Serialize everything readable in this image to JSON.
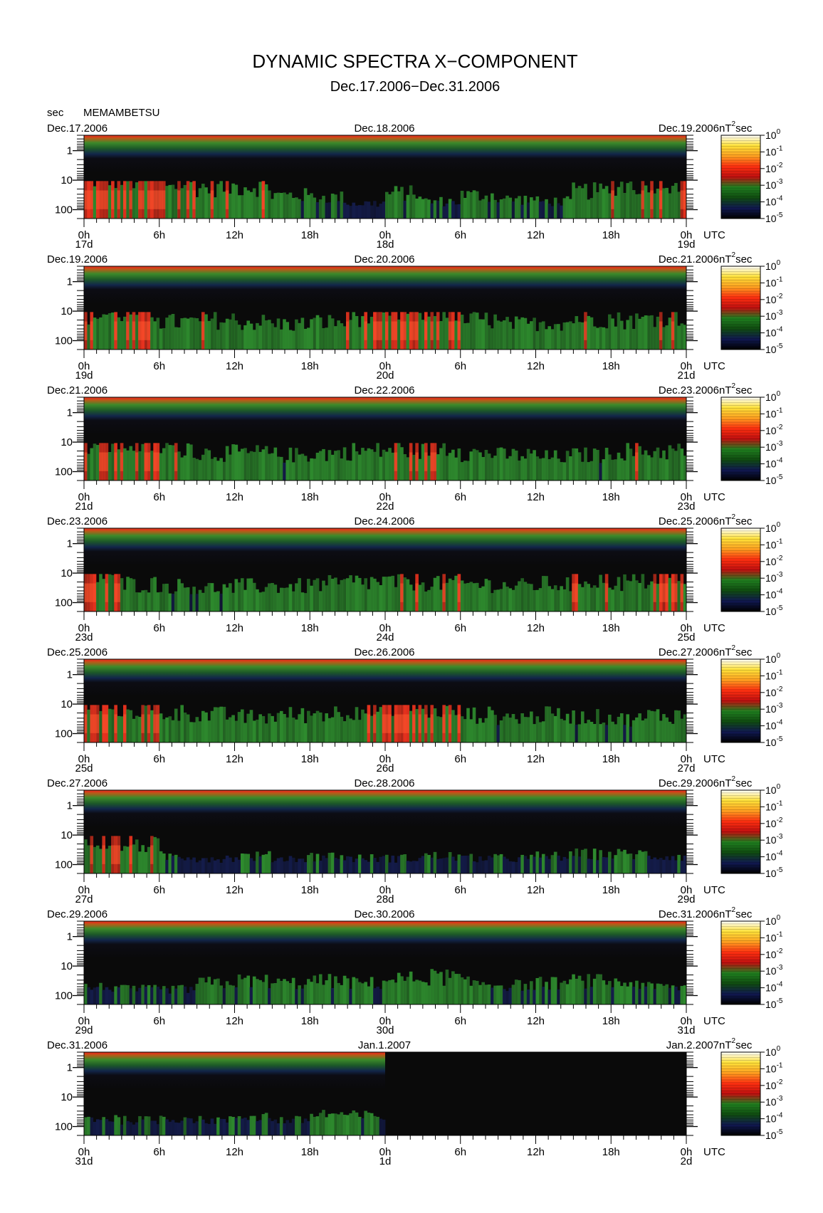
{
  "title": "DYNAMIC SPECTRA X−COMPONENT",
  "subtitle": "Dec.17.2006−Dec.31.2006",
  "y_unit": "sec",
  "station": "MEMAMBETSU",
  "time_unit": "UTC",
  "colorbar_unit": "nT",
  "colorbar_unit_sup": "2",
  "colorbar_unit_suffix": "sec",
  "colorbar_ticks": [
    {
      "base": "10",
      "exp": "0"
    },
    {
      "base": "10",
      "exp": "-1"
    },
    {
      "base": "10",
      "exp": "-2"
    },
    {
      "base": "10",
      "exp": "-3"
    },
    {
      "base": "10",
      "exp": "-4"
    },
    {
      "base": "10",
      "exp": "-5"
    }
  ],
  "colors": {
    "background": "#0a0a0a",
    "band_top": "#d83a1c",
    "green": "#2e8b2e",
    "red": "#e8321e",
    "navy": "#141c4a",
    "colorbar_stops": [
      "#ffffff",
      "#ffe23a",
      "#ffa020",
      "#ff3010",
      "#c01010",
      "#208020",
      "#104c10",
      "#101850",
      "#000000"
    ]
  },
  "chart_data": {
    "type": "heatmap",
    "y_axis": {
      "label": "sec",
      "scale": "log",
      "ticks": [
        "1",
        "10",
        "100"
      ],
      "reversed": true
    },
    "x_ticks": [
      "0h",
      "6h",
      "12h",
      "18h",
      "0h",
      "6h",
      "12h",
      "18h",
      "0h"
    ],
    "colorbar": {
      "label": "nT²sec",
      "scale": "log",
      "range": [
        1e-05,
        1
      ]
    },
    "panels": [
      {
        "left_date": "Dec.17.2006",
        "mid_date": "Dec.18.2006",
        "right_date": "Dec.19.2006",
        "day_labels": [
          "17d",
          "18d",
          "19d"
        ],
        "activity": [
          0.95,
          0.9,
          0.8,
          0.7,
          0.72,
          0.5,
          0.45,
          0.3,
          0.55,
          0.35,
          0.5,
          0.4,
          0.35,
          0.6,
          0.75,
          0.85
        ],
        "data_end": 1.0
      },
      {
        "left_date": "Dec.19.2006",
        "mid_date": "Dec.20.2006",
        "right_date": "Dec.21.2006",
        "day_labels": [
          "19d",
          "20d",
          "21d"
        ],
        "activity": [
          0.8,
          0.85,
          0.6,
          0.65,
          0.6,
          0.55,
          0.6,
          0.75,
          0.85,
          0.9,
          0.65,
          0.55,
          0.6,
          0.7,
          0.65,
          0.75
        ],
        "data_end": 1.0
      },
      {
        "left_date": "Dec.21.2006",
        "mid_date": "Dec.22.2006",
        "right_date": "Dec.23.2006",
        "day_labels": [
          "21d",
          "22d",
          "23d"
        ],
        "activity": [
          0.85,
          0.85,
          0.75,
          0.6,
          0.6,
          0.55,
          0.6,
          0.65,
          0.7,
          0.75,
          0.6,
          0.55,
          0.5,
          0.55,
          0.65,
          0.65
        ],
        "data_end": 1.0
      },
      {
        "left_date": "Dec.23.2006",
        "mid_date": "Dec.24.2006",
        "right_date": "Dec.25.2006",
        "day_labels": [
          "23d",
          "24d",
          "25d"
        ],
        "activity": [
          0.85,
          0.6,
          0.55,
          0.5,
          0.55,
          0.55,
          0.6,
          0.65,
          0.65,
          0.65,
          0.6,
          0.55,
          0.6,
          0.7,
          0.65,
          0.8
        ],
        "data_end": 1.0
      },
      {
        "left_date": "Dec.25.2006",
        "mid_date": "Dec.26.2006",
        "right_date": "Dec.27.2006",
        "day_labels": [
          "25d",
          "26d",
          "27d"
        ],
        "activity": [
          0.85,
          0.75,
          0.65,
          0.6,
          0.55,
          0.6,
          0.65,
          0.75,
          0.9,
          0.75,
          0.6,
          0.55,
          0.6,
          0.55,
          0.5,
          0.6
        ],
        "data_end": 1.0
      },
      {
        "left_date": "Dec.27.2006",
        "mid_date": "Dec.28.2006",
        "right_date": "Dec.29.2006",
        "day_labels": [
          "27d",
          "28d",
          "29d"
        ],
        "activity": [
          0.75,
          0.65,
          0.35,
          0.3,
          0.35,
          0.3,
          0.35,
          0.3,
          0.3,
          0.35,
          0.3,
          0.3,
          0.35,
          0.4,
          0.4,
          0.35
        ],
        "data_end": 1.0
      },
      {
        "left_date": "Dec.29.2006",
        "mid_date": "Dec.30.2006",
        "right_date": "Dec.31.2006",
        "day_labels": [
          "29d",
          "30d",
          "31d"
        ],
        "activity": [
          0.35,
          0.3,
          0.3,
          0.45,
          0.5,
          0.45,
          0.5,
          0.45,
          0.55,
          0.6,
          0.45,
          0.4,
          0.45,
          0.5,
          0.45,
          0.35
        ],
        "data_end": 1.0
      },
      {
        "left_date": "Dec.31.2006",
        "mid_date": "Jan.1.2007",
        "right_date": "Jan.2.2007",
        "day_labels": [
          "31d",
          "1d",
          "2d"
        ],
        "activity": [
          0.35,
          0.3,
          0.35,
          0.3,
          0.4,
          0.3,
          0.45,
          0.4,
          0,
          0,
          0,
          0,
          0,
          0,
          0,
          0
        ],
        "data_end": 0.5
      }
    ]
  }
}
